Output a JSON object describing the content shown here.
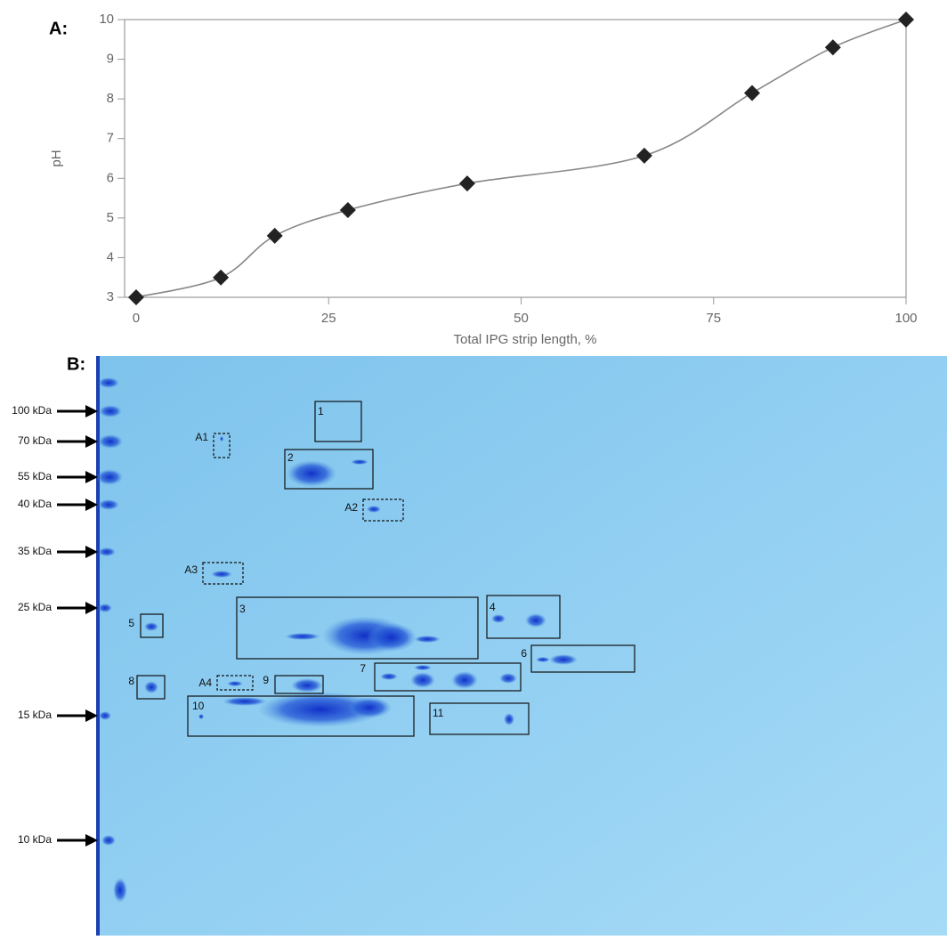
{
  "chart_data": {
    "type": "line",
    "panel_label": "A:",
    "ylabel": "pH",
    "xlabel": "Total IPG strip length, %",
    "series": [
      {
        "color": "#222222",
        "x": [
          0,
          11,
          18,
          27.5,
          43,
          66,
          80,
          90.5,
          100
        ],
        "values": [
          3,
          3.5,
          4.55,
          5.2,
          5.87,
          6.57,
          8.15,
          9.3,
          10
        ]
      }
    ],
    "xlim": [
      -1.5,
      100
    ],
    "xticks": [
      0,
      25,
      50,
      75,
      100
    ],
    "ylim": [
      3,
      10
    ],
    "yticks": [
      3,
      4,
      5,
      6,
      7,
      8,
      9,
      10
    ],
    "grid": false
  },
  "gel": {
    "panel_label": "B:",
    "markers": [
      "100 kDa",
      "70 kDa",
      "55 kDa",
      "40 kDa",
      "35 kDa",
      "25 kDa",
      "15 kDa",
      "10 kDa"
    ],
    "boxes": [
      "1",
      "2",
      "3",
      "4",
      "5",
      "6",
      "7",
      "8",
      "9",
      "10",
      "11"
    ],
    "dashed_boxes": [
      "A1",
      "A2",
      "A3",
      "A4"
    ]
  }
}
